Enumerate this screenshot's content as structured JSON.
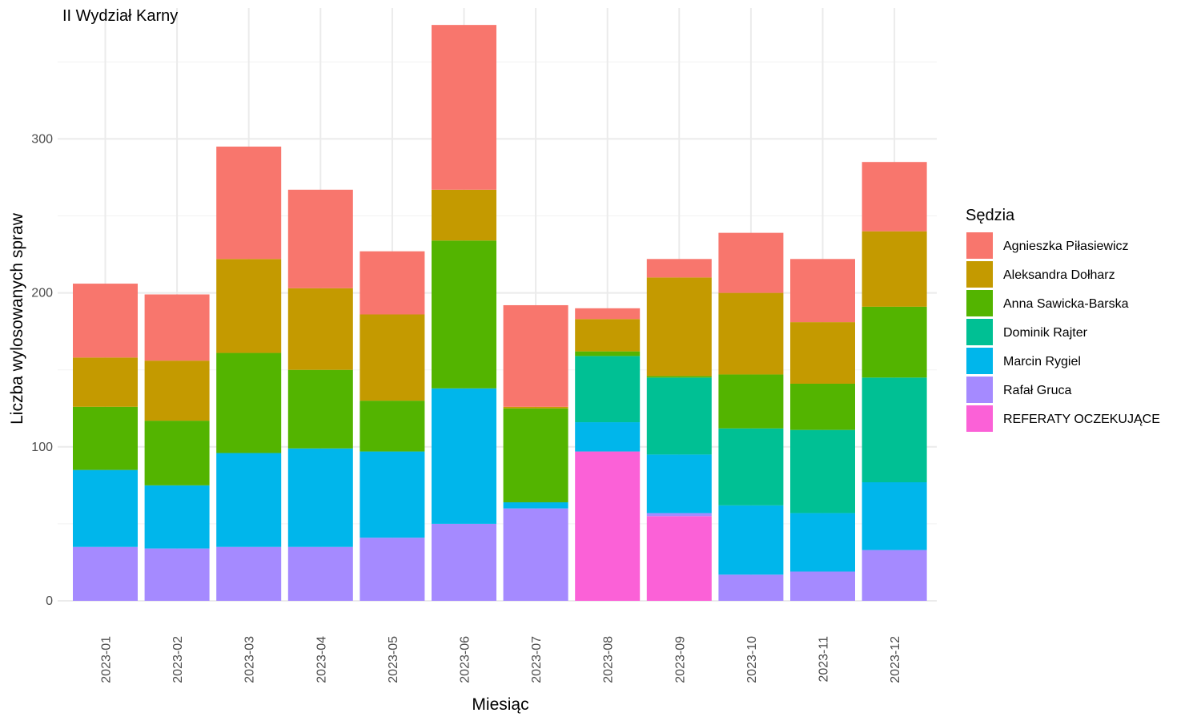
{
  "chart_data": {
    "type": "bar",
    "stacked": true,
    "title": "II Wydział Karny",
    "xlabel": "Miesiąc",
    "ylabel": "Liczba wylosowanych spraw",
    "ylim": [
      0,
      385
    ],
    "yticks": [
      0,
      100,
      200,
      300
    ],
    "grid": true,
    "legend_title": "Sędzia",
    "legend_position": "right",
    "categories": [
      "2023-01",
      "2023-02",
      "2023-03",
      "2023-04",
      "2023-05",
      "2023-06",
      "2023-07",
      "2023-08",
      "2023-09",
      "2023-10",
      "2023-11",
      "2023-12"
    ],
    "series": [
      {
        "name": "Agnieszka Piłasiewicz",
        "color": "#F8766D",
        "values": [
          48,
          43,
          73,
          64,
          41,
          107,
          66,
          7,
          12,
          39,
          41,
          45
        ]
      },
      {
        "name": "Aleksandra Dołharz",
        "color": "#C49A00",
        "values": [
          32,
          39,
          61,
          53,
          56,
          33,
          1,
          21,
          64,
          53,
          40,
          49
        ]
      },
      {
        "name": "Anna Sawicka-Barska",
        "color": "#53B400",
        "values": [
          41,
          42,
          65,
          51,
          33,
          96,
          61,
          3,
          1,
          35,
          30,
          46
        ]
      },
      {
        "name": "Dominik Rajter",
        "color": "#00C094",
        "values": [
          0,
          0,
          0,
          0,
          0,
          0,
          0,
          43,
          50,
          50,
          54,
          68
        ]
      },
      {
        "name": "Marcin Rygiel",
        "color": "#00B6EB",
        "values": [
          50,
          41,
          61,
          64,
          56,
          88,
          4,
          19,
          38,
          45,
          38,
          44
        ]
      },
      {
        "name": "Rafał Gruca",
        "color": "#A58AFF",
        "values": [
          35,
          34,
          35,
          35,
          41,
          50,
          60,
          0,
          2,
          17,
          19,
          33
        ]
      },
      {
        "name": "REFERATY OCZEKUJĄCE",
        "color": "#FB61D7",
        "values": [
          0,
          0,
          0,
          0,
          0,
          0,
          0,
          97,
          55,
          0,
          0,
          0
        ]
      }
    ]
  }
}
